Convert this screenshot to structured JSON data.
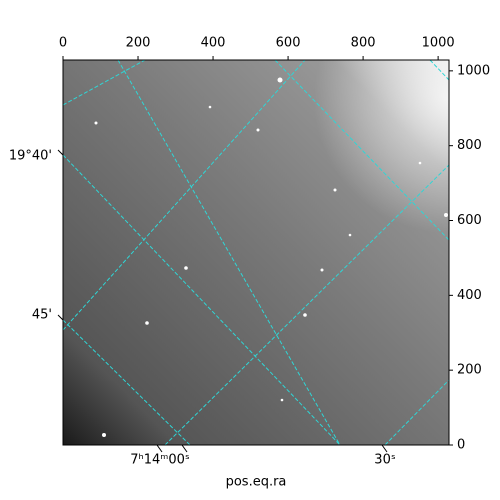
{
  "chart_data": {
    "type": "image",
    "xlabel": "pos.eq.ra",
    "xlim": [
      0,
      1029
    ],
    "ylim": [
      0,
      1029
    ],
    "xticks": [
      0,
      200,
      400,
      600,
      800,
      1000
    ],
    "yticks": [
      0,
      200,
      400,
      600,
      800,
      1000
    ],
    "ra_ticks": [
      "7ʰ14ᵐ00ˢ",
      "30ˢ"
    ],
    "dec_ticks": [
      "19°40'",
      "45'"
    ]
  }
}
